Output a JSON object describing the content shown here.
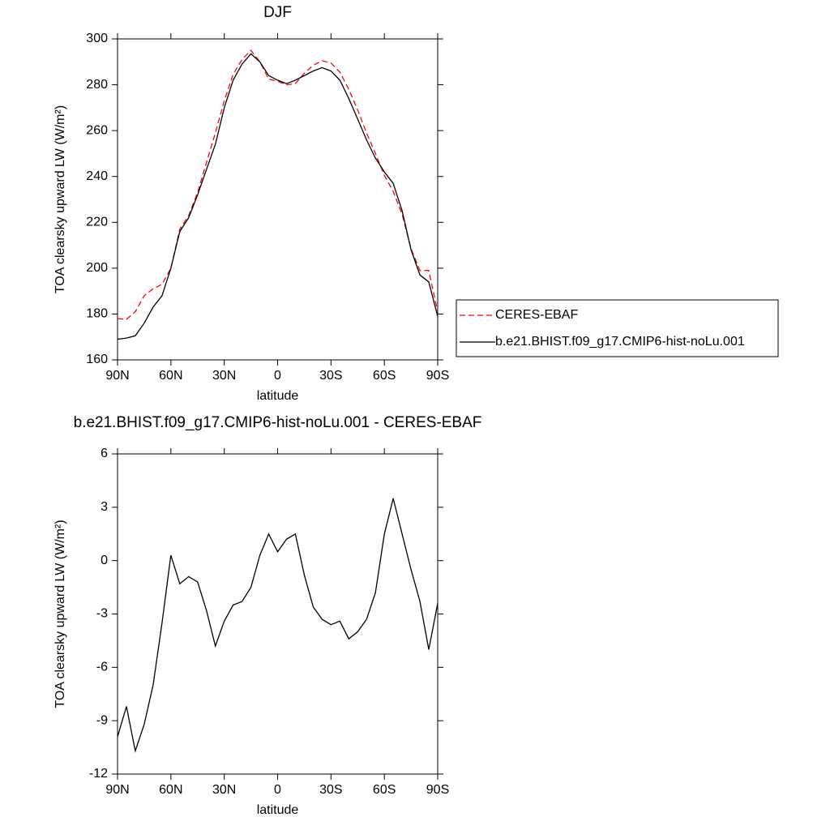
{
  "chart_data": [
    {
      "type": "line",
      "title": "DJF",
      "xlabel": "latitude",
      "ylabel": "TOA clearsky upward LW (W/m²)",
      "x": [
        90,
        85,
        80,
        75,
        70,
        65,
        60,
        55,
        50,
        45,
        40,
        35,
        30,
        25,
        20,
        15,
        10,
        5,
        0,
        -5,
        -10,
        -15,
        -20,
        -25,
        -30,
        -35,
        -40,
        -45,
        -50,
        -55,
        -60,
        -65,
        -70,
        -75,
        -80,
        -85,
        -90
      ],
      "xlim": [
        90,
        -90
      ],
      "xticks": [
        {
          "value": 90,
          "label": "90N"
        },
        {
          "value": 60,
          "label": "60N"
        },
        {
          "value": 30,
          "label": "30N"
        },
        0,
        {
          "value": -30,
          "label": "30S"
        },
        {
          "value": -60,
          "label": "60S"
        },
        {
          "value": -90,
          "label": "90S"
        }
      ],
      "ylim": [
        160,
        300
      ],
      "yticks": [
        160,
        180,
        200,
        220,
        240,
        260,
        280,
        300
      ],
      "legend": "right",
      "series": [
        {
          "name": "CERES-EBAF",
          "color": "#ff0000",
          "line_style": "dashed",
          "values": [
            178,
            177.7,
            181,
            188,
            191,
            193,
            200,
            217,
            223,
            233,
            246,
            259,
            273,
            284.5,
            291,
            295,
            290,
            282.5,
            281.5,
            280,
            280.5,
            285,
            288.5,
            290.5,
            289.5,
            285.5,
            278,
            269,
            259,
            250,
            240.5,
            233.5,
            223.5,
            208.5,
            199,
            199,
            181
          ]
        },
        {
          "name": "b.e21.BHIST.f09_g17.CMIP6-hist-noLu.001",
          "color": "#000000",
          "line_style": "solid",
          "values": [
            169,
            169.5,
            170.5,
            176,
            183,
            188,
            200,
            216,
            222,
            232,
            243,
            254,
            270,
            282,
            289,
            293.5,
            290,
            284,
            282,
            280.5,
            282,
            284,
            286,
            287.5,
            286,
            282,
            274,
            265,
            256,
            248,
            242,
            237,
            225,
            208,
            197,
            194,
            179
          ]
        }
      ]
    },
    {
      "type": "line",
      "title": "b.e21.BHIST.f09_g17.CMIP6-hist-noLu.001 - CERES-EBAF",
      "xlabel": "latitude",
      "ylabel": "TOA clearsky upward LW (W/m²)",
      "x": [
        90,
        85,
        80,
        75,
        70,
        65,
        60,
        55,
        50,
        45,
        40,
        35,
        30,
        25,
        20,
        15,
        10,
        5,
        0,
        -5,
        -10,
        -15,
        -20,
        -25,
        -30,
        -35,
        -40,
        -45,
        -50,
        -55,
        -60,
        -65,
        -70,
        -75,
        -80,
        -85,
        -90
      ],
      "xlim": [
        90,
        -90
      ],
      "xticks": [
        {
          "value": 90,
          "label": "90N"
        },
        {
          "value": 60,
          "label": "60N"
        },
        {
          "value": 30,
          "label": "30N"
        },
        0,
        {
          "value": -30,
          "label": "30S"
        },
        {
          "value": -60,
          "label": "60S"
        },
        {
          "value": -90,
          "label": "90S"
        }
      ],
      "ylim": [
        -12,
        6
      ],
      "yticks": [
        -12,
        -9,
        -6,
        -3,
        0,
        3,
        6
      ],
      "series": [
        {
          "color": "#000000",
          "line_style": "solid",
          "values": [
            -9.9,
            -8.2,
            -10.7,
            -9.2,
            -7,
            -3.5,
            0.3,
            -1.3,
            -0.9,
            -1.2,
            -2.8,
            -4.8,
            -3.4,
            -2.5,
            -2.3,
            -1.5,
            0.3,
            1.5,
            0.5,
            1.2,
            1.5,
            -0.8,
            -2.6,
            -3.3,
            -3.6,
            -3.4,
            -4.4,
            -4,
            -3.3,
            -1.8,
            1.5,
            3.5,
            1.5,
            -0.5,
            -2.3,
            -5,
            -2.4
          ]
        }
      ]
    }
  ]
}
